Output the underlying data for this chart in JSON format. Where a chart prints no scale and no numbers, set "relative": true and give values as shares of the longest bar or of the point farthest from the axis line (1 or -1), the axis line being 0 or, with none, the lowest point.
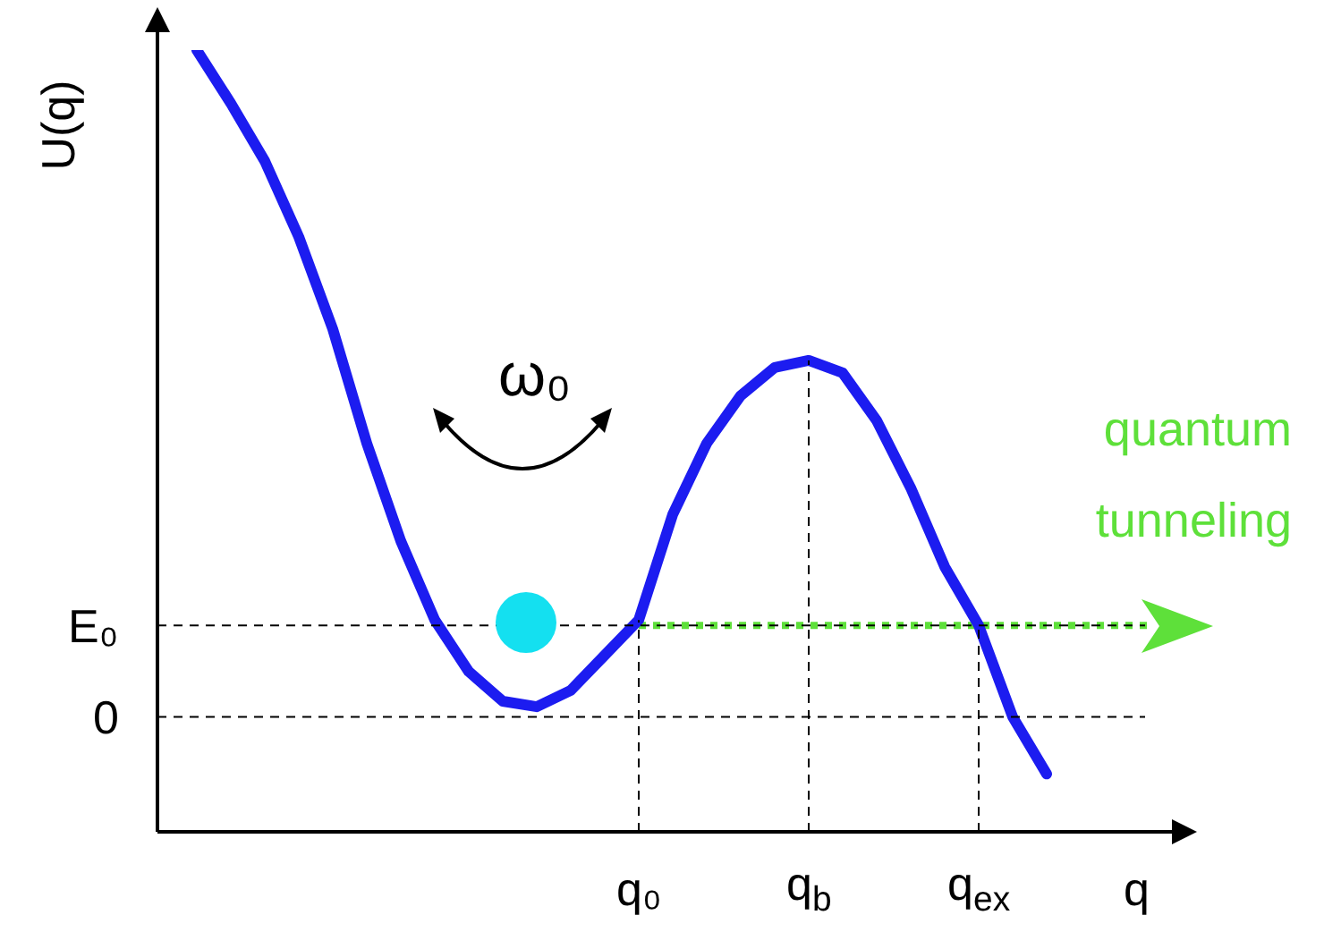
{
  "chart_data": {
    "type": "line",
    "relative": true,
    "ylabel": "U(q)",
    "xlabel": "q",
    "legend": false,
    "marker": "none",
    "line_style": "solid",
    "categories": [
      null,
      null,
      null,
      null,
      null,
      null,
      null,
      null,
      null,
      null,
      null,
      null,
      null,
      "q₀",
      null,
      null,
      null,
      null,
      "q$_{b}$",
      null,
      null,
      null,
      null,
      "q$_{ex}$",
      null,
      null,
      null,
      null,
      null
    ],
    "series": [
      {
        "color": "#1c1cf0",
        "values": [
          1,
          0.932,
          0.858,
          0.761,
          0.643,
          0.497,
          0.372,
          0.271,
          0.205,
          0.167,
          0.16,
          0.181,
          0.226,
          0.271,
          0.406,
          0.497,
          0.558,
          0.594,
          0.603,
          0.587,
          0.526,
          0.44,
          0.339,
          0.264,
          0.147,
          0.074,
          null,
          null,
          null
        ]
      },
      {
        "color": "#5ee03a",
        "line_style": "dotted",
        "values": [
          null,
          null,
          null,
          null,
          null,
          null,
          null,
          null,
          null,
          null,
          null,
          null,
          null,
          0.264,
          0.264,
          0.264,
          0.264,
          0.264,
          0.264,
          0.264,
          0.264,
          0.264,
          0.264,
          0.264,
          0.264,
          0.264,
          0.264,
          0.264,
          0.264
        ]
      }
    ],
    "ref_lines": [
      {
        "axis": "y",
        "value": 0.147,
        "label": "0",
        "color": "#000000",
        "line_style": "dashed"
      },
      {
        "axis": "y",
        "value": 0.264,
        "label": "E₀",
        "color": "#000000",
        "line_style": "dashed"
      },
      {
        "axis": "x",
        "value": "q₀",
        "color": "#000000",
        "line_style": "dashed"
      },
      {
        "axis": "x",
        "value": "q$_{b}$",
        "color": "#000000",
        "line_style": "dashed"
      },
      {
        "axis": "x",
        "value": "q$_{ex}$",
        "color": "#000000",
        "line_style": "dashed"
      }
    ],
    "annotations": [
      "ω₀",
      "quantum tunneling"
    ]
  }
}
